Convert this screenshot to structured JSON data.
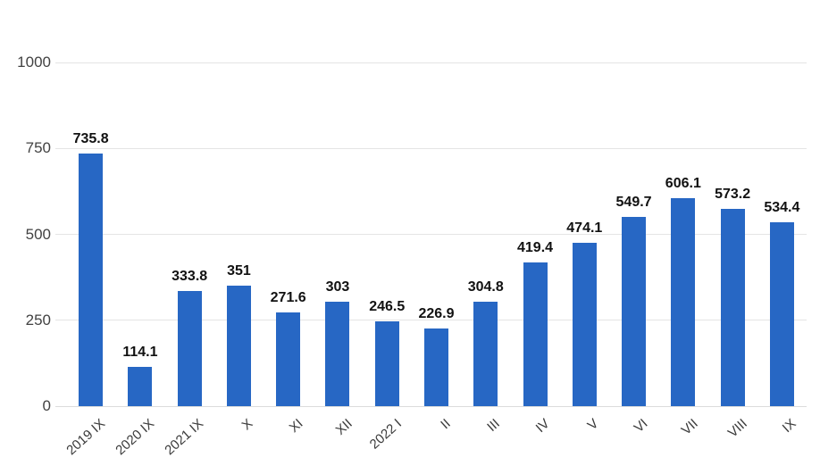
{
  "chart_data": {
    "type": "bar",
    "title": "",
    "xlabel": "",
    "ylabel": "",
    "categories": [
      "2019 IX",
      "2020 IX",
      "2021 IX",
      "X",
      "XI",
      "XII",
      "2022 I",
      "II",
      "III",
      "IV",
      "V",
      "VI",
      "VII",
      "VIII",
      "IX"
    ],
    "values": [
      735.8,
      114.1,
      333.8,
      351,
      271.6,
      303,
      246.5,
      226.9,
      304.8,
      419.4,
      474.1,
      549.7,
      606.1,
      573.2,
      534.4
    ],
    "value_labels": [
      "735.8",
      "114.1",
      "333.8",
      "351",
      "271.6",
      "303",
      "246.5",
      "226.9",
      "304.8",
      "419.4",
      "474.1",
      "549.7",
      "606.1",
      "573.2",
      "534.4"
    ],
    "ylim": [
      0,
      1000
    ],
    "yticks": [
      0,
      250,
      500,
      750,
      1000
    ],
    "ytick_labels": [
      "0",
      "250",
      "500",
      "750",
      "1000"
    ],
    "grid": true,
    "legend_position": "none",
    "bar_color": "#2767c4",
    "gridline_color": "#e4e4e4",
    "value_label_color": "#111111",
    "axis_text_color": "#424242",
    "background_color": "#ffffff"
  }
}
